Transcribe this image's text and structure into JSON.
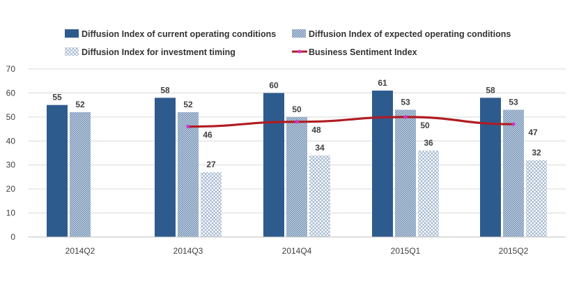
{
  "chart_data": {
    "type": "bar",
    "title": "",
    "xlabel": "",
    "ylabel": "",
    "ylim": [
      0,
      70
    ],
    "yticks": [
      0,
      10,
      20,
      30,
      40,
      50,
      60,
      70
    ],
    "grid": true,
    "legend_position": "top",
    "categories": [
      "2014Q2",
      "2014Q3",
      "2014Q4",
      "2015Q1",
      "2015Q2"
    ],
    "series": [
      {
        "name": "Diffusion Index of current operating conditions",
        "kind": "bar",
        "style": "solid",
        "color": "#2e5b8e",
        "values": [
          55,
          58,
          60,
          61,
          58
        ],
        "labels": [
          "55",
          "58",
          "60",
          "61",
          "58"
        ]
      },
      {
        "name": "Diffusion Index of expected operating conditions",
        "kind": "bar",
        "style": "hatch",
        "color": "#5c7fa8",
        "values": [
          52,
          52,
          50,
          53,
          53
        ],
        "labels": [
          "52",
          "52",
          "50",
          "53",
          "53"
        ]
      },
      {
        "name": "Diffusion Index for investment timing",
        "kind": "bar",
        "style": "crosshatch",
        "color": "#8fa8c6",
        "values": [
          null,
          27,
          34,
          36,
          32
        ],
        "labels": [
          "",
          "27",
          "34",
          "36",
          "32"
        ]
      },
      {
        "name": "Business Sentiment Index",
        "kind": "line",
        "color": "#b01c22",
        "marker_color": "#cc33cc",
        "values": [
          null,
          46,
          48,
          50,
          47
        ],
        "labels": [
          "",
          "46",
          "48",
          "50",
          "47"
        ]
      }
    ]
  }
}
